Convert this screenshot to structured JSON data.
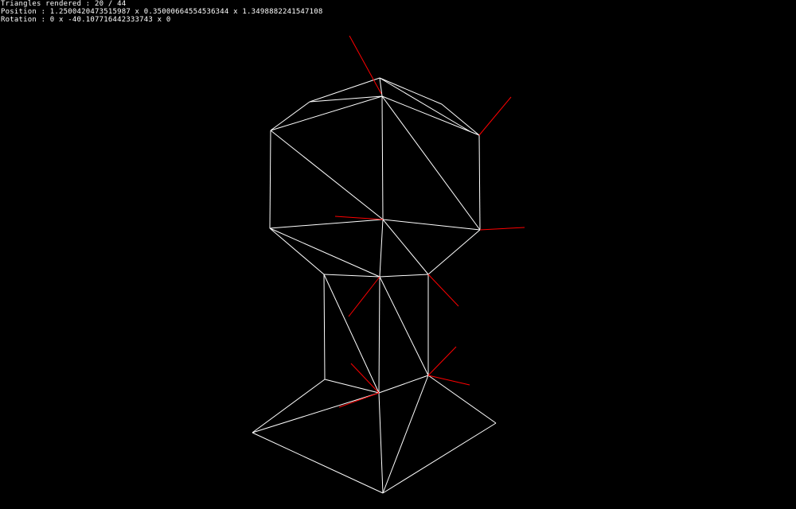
{
  "hud": {
    "triangles_label": "Triangles rendered : 20 / 44",
    "position_label": "Position : 1.2500420473515987 x 0.35000664554536344 x 1.3498882241547108",
    "rotation_label": "Rotation : 0 x -40.107716442333743 x 0"
  },
  "colors": {
    "background": "#000000",
    "wireframe": "#ffffff",
    "normals": "#ff0000",
    "hud_text": "#ffffff"
  }
}
